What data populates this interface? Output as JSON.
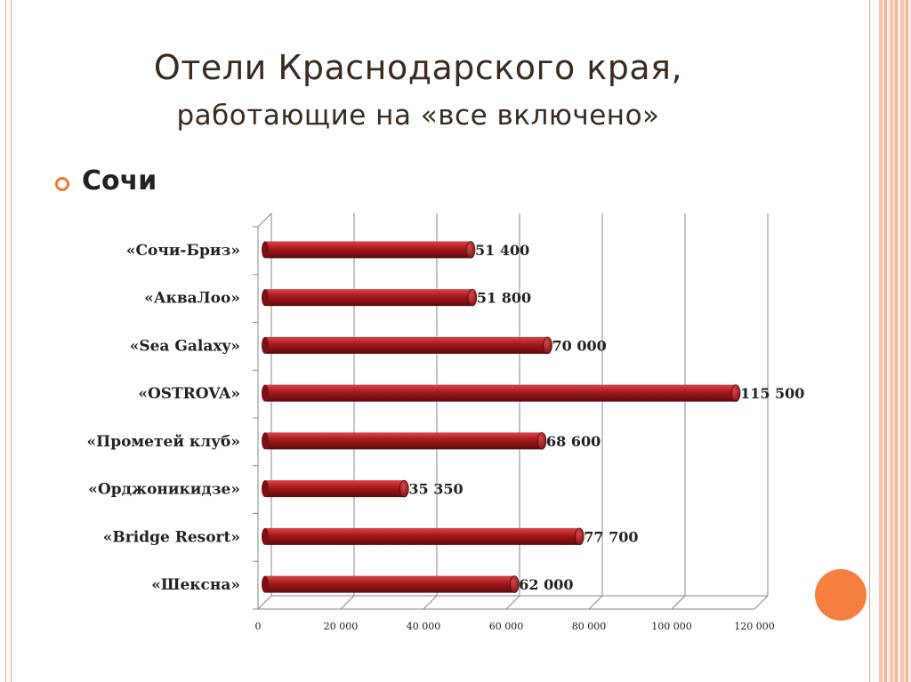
{
  "slide": {
    "title_line1": "Отели Краснодарского края,",
    "title_line2": "работающие на «все включено»",
    "bullet_text": "Сочи"
  },
  "chart_data": {
    "type": "bar",
    "orientation": "horizontal",
    "categories": [
      "«Сочи-Бриз»",
      "«АкваЛоо»",
      "«Sea Galaxy»",
      "«OSTROVA»",
      "«Прометей клуб»",
      "«Орджоникидзе»",
      "«Bridge Resort»",
      "«Шексна»"
    ],
    "values": [
      51400,
      51800,
      70000,
      115500,
      68600,
      35350,
      77700,
      62000
    ],
    "value_labels": [
      "51 400",
      "51 800",
      "70 000",
      "115 500",
      "68 600",
      "35 350",
      "77 700",
      "62 000"
    ],
    "xlim": [
      0,
      120000
    ],
    "x_ticks": [
      0,
      20000,
      40000,
      60000,
      80000,
      100000,
      120000
    ],
    "x_tick_labels": [
      "0",
      "20 000",
      "40 000",
      "60 000",
      "80 000",
      "100 000",
      "120 000"
    ],
    "grid": true,
    "bar_color": "#a3181c",
    "title": "",
    "xlabel": "",
    "ylabel": ""
  }
}
